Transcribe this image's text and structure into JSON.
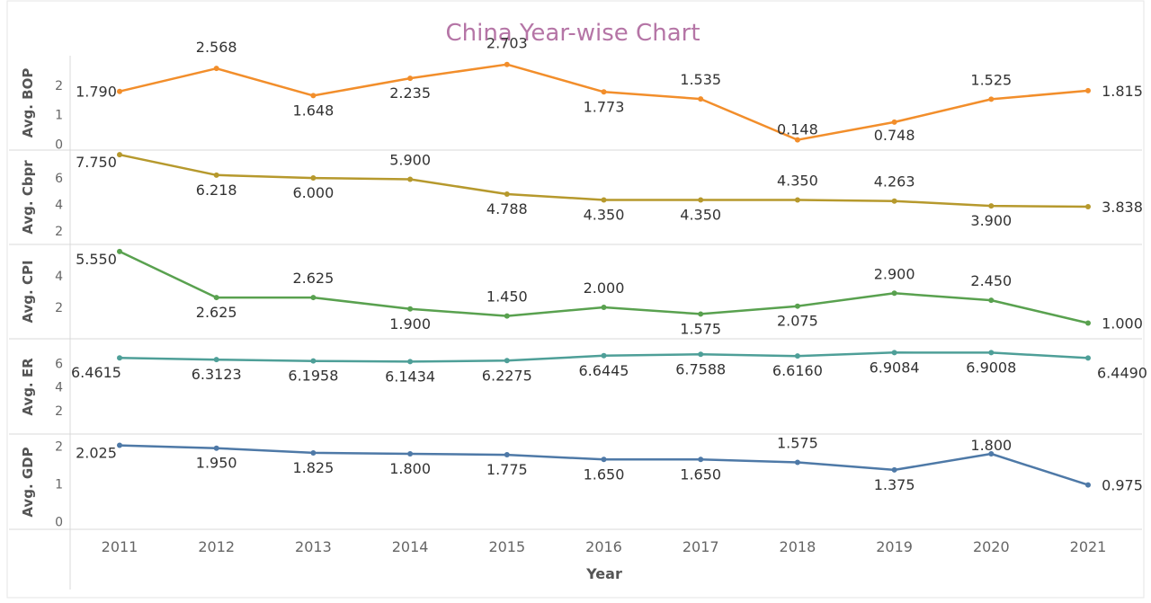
{
  "chart_data": {
    "type": "line",
    "title": "China Year-wise Chart",
    "xlabel": "Year",
    "categories": [
      "2011",
      "2012",
      "2013",
      "2014",
      "2015",
      "2016",
      "2017",
      "2018",
      "2019",
      "2020",
      "2021"
    ],
    "panels": [
      {
        "ylabel": "Avg. BOP",
        "color": "#F28E2B",
        "ylim": [
          -0.2,
          3.0
        ],
        "yticks": [
          "0",
          "1",
          "2"
        ],
        "ytick_values": [
          0,
          1,
          2
        ],
        "values": [
          1.79,
          2.568,
          1.648,
          2.235,
          2.703,
          1.773,
          1.535,
          0.148,
          0.748,
          1.525,
          1.815
        ],
        "labels": [
          "1.790",
          "2.568",
          "1.648",
          "2.235",
          "2.703",
          "1.773",
          "1.535",
          "0.148",
          "0.748",
          "1.525",
          "1.815"
        ]
      },
      {
        "ylabel": "Avg. Cbpr",
        "color": "#B6992D",
        "ylim": [
          1.0,
          8.1
        ],
        "yticks": [
          "2",
          "4",
          "6"
        ],
        "ytick_values": [
          2,
          4,
          6
        ],
        "values": [
          7.75,
          6.218,
          6.0,
          5.9,
          4.788,
          4.35,
          4.35,
          4.35,
          4.263,
          3.9,
          3.838
        ],
        "labels": [
          "7.750",
          "6.218",
          "6.000",
          "5.900",
          "4.788",
          "4.350",
          "4.350",
          "4.350",
          "4.263",
          "3.900",
          "3.838"
        ]
      },
      {
        "ylabel": "Avg. CPI",
        "color": "#59A14F",
        "ylim": [
          0.0,
          6.0
        ],
        "yticks": [
          "2",
          "4"
        ],
        "ytick_values": [
          2,
          4
        ],
        "values": [
          5.55,
          2.625,
          2.625,
          1.9,
          1.45,
          2.0,
          1.575,
          2.075,
          2.9,
          2.45,
          1.0
        ],
        "labels": [
          "5.550",
          "2.625",
          "2.625",
          "1.900",
          "1.450",
          "2.000",
          "1.575",
          "2.075",
          "2.900",
          "2.450",
          "1.000"
        ]
      },
      {
        "ylabel": "Avg. ER",
        "color": "#4E9F98",
        "ylim": [
          0.0,
          8.0
        ],
        "yticks": [
          "2",
          "4",
          "6"
        ],
        "ytick_values": [
          2,
          4,
          6
        ],
        "values": [
          6.4615,
          6.3123,
          6.1958,
          6.1434,
          6.2275,
          6.6445,
          6.7588,
          6.616,
          6.9084,
          6.9008,
          6.449
        ],
        "labels": [
          "6.4615",
          "6.3123",
          "6.1958",
          "6.1434",
          "6.2275",
          "6.6445",
          "6.7588",
          "6.6160",
          "6.9084",
          "6.9008",
          "6.4490"
        ]
      },
      {
        "ylabel": "Avg. GDP",
        "color": "#4E79A7",
        "ylim": [
          -0.2,
          2.3
        ],
        "yticks": [
          "0",
          "1",
          "2"
        ],
        "ytick_values": [
          0,
          1,
          2
        ],
        "values": [
          2.025,
          1.95,
          1.825,
          1.8,
          1.775,
          1.65,
          1.65,
          1.575,
          1.375,
          1.8,
          0.975
        ],
        "labels": [
          "2.025",
          "1.950",
          "1.825",
          "1.800",
          "1.775",
          "1.650",
          "1.650",
          "1.575",
          "1.375",
          "1.800",
          "0.975"
        ]
      }
    ],
    "grid": false,
    "legend": "none"
  },
  "colors": {
    "title": "#B575A6",
    "axis_text": "#666666",
    "label_text": "#333333",
    "divider": "#D9D9D9"
  }
}
